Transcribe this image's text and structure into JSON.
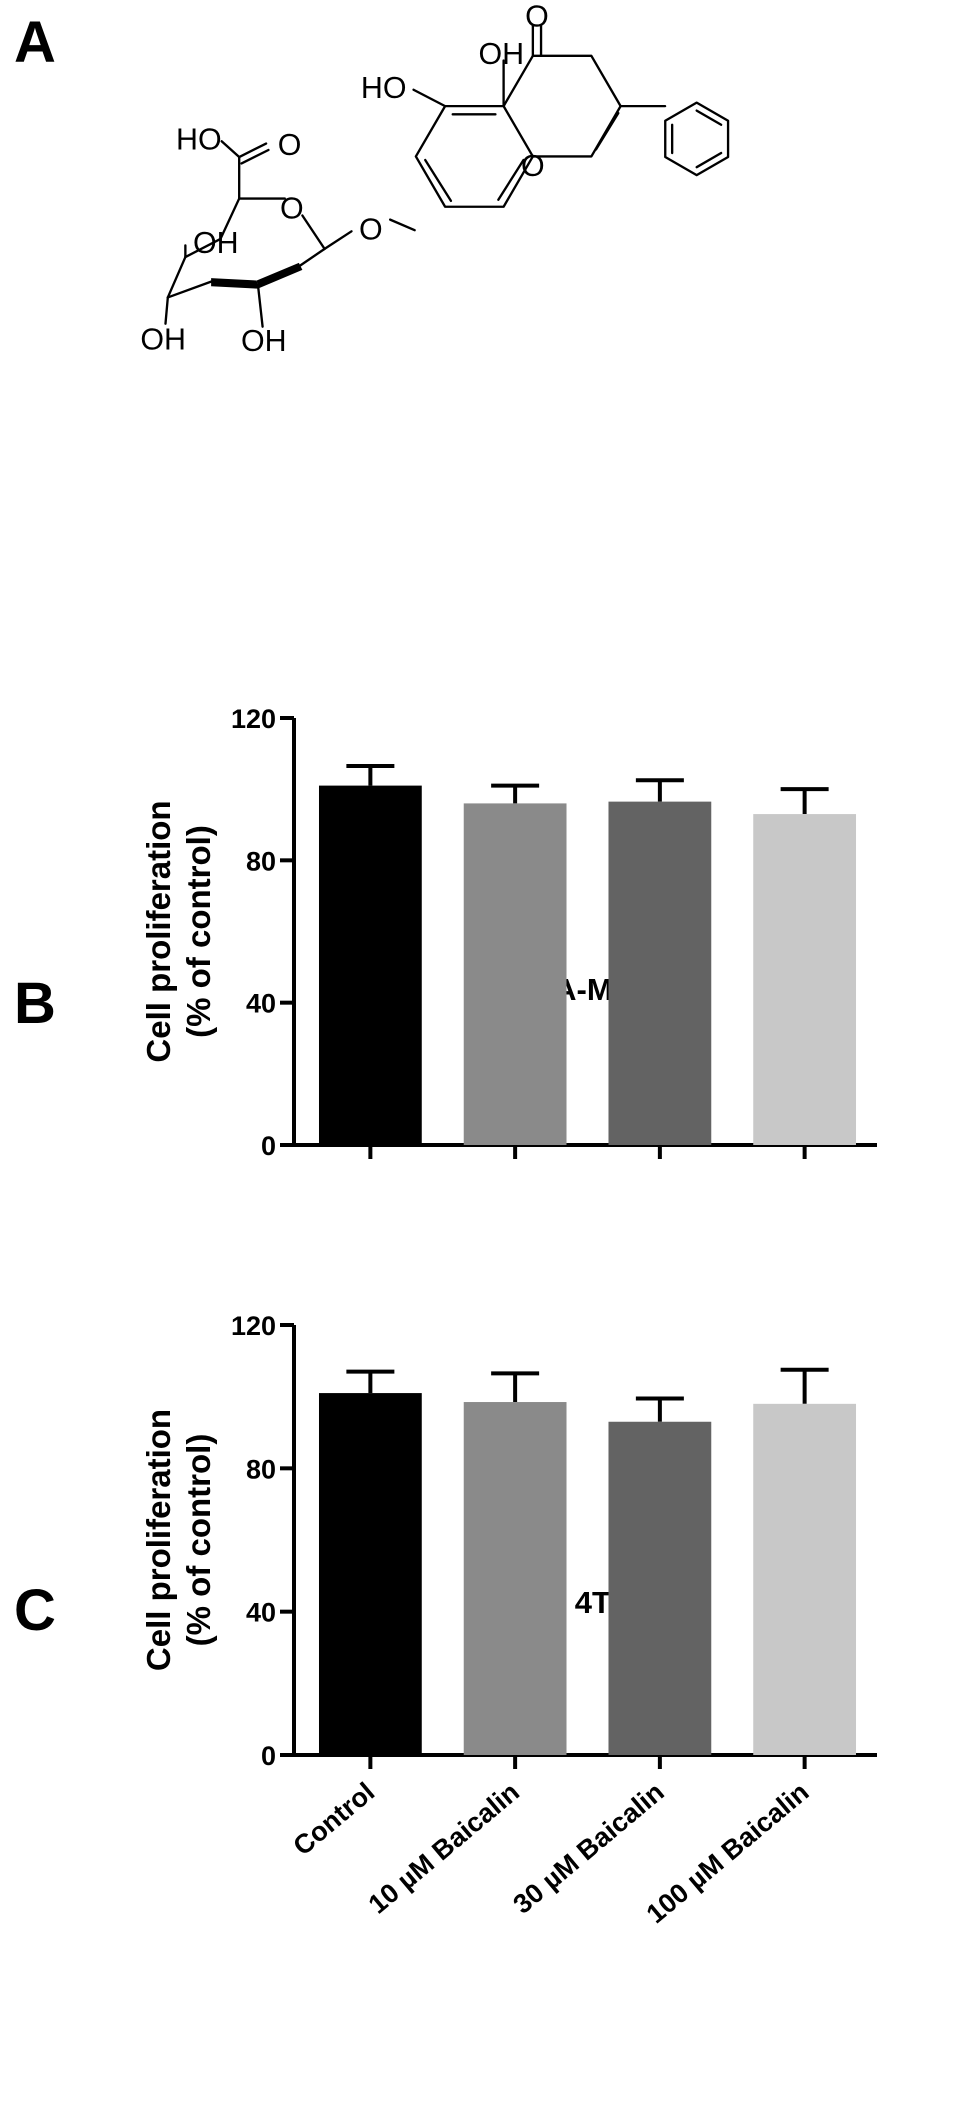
{
  "panels": {
    "a": {
      "letter": "A"
    },
    "b": {
      "letter": "B"
    },
    "c": {
      "letter": "C"
    }
  },
  "molecule": {
    "labels": [
      "OH",
      "O",
      "HO",
      "HO",
      "O",
      "O",
      "O",
      "O",
      "OH",
      "OH",
      "OH"
    ]
  },
  "chart_data": [
    {
      "type": "bar",
      "title": "MDA-MB-231",
      "ylabel": "Cell proliferation\n(% of control)",
      "xlabel": "",
      "categories": [
        "Control",
        "10 µM Baicalin",
        "30 µM Baicalin",
        "100 µM Baicalin"
      ],
      "show_category_labels": false,
      "values": [
        101,
        96,
        96.5,
        93
      ],
      "errors": [
        5.5,
        5,
        6,
        7
      ],
      "ylim": [
        0,
        120
      ],
      "yticks": [
        0,
        40,
        80,
        120
      ],
      "bar_colors": [
        "#000000",
        "#8a8a8a",
        "#636363",
        "#c8c8c8"
      ],
      "grid": false
    },
    {
      "type": "bar",
      "title": "4T1",
      "ylabel": "Cell proliferation\n(% of control)",
      "xlabel": "",
      "categories": [
        "Control",
        "10 µM Baicalin",
        "30 µM Baicalin",
        "100 µM Baicalin"
      ],
      "show_category_labels": true,
      "values": [
        101,
        98.5,
        93,
        98
      ],
      "errors": [
        6,
        8,
        6.5,
        9.5
      ],
      "ylim": [
        0,
        120
      ],
      "yticks": [
        0,
        40,
        80,
        120
      ],
      "bar_colors": [
        "#000000",
        "#8a8a8a",
        "#636363",
        "#c8c8c8"
      ],
      "grid": false
    }
  ]
}
